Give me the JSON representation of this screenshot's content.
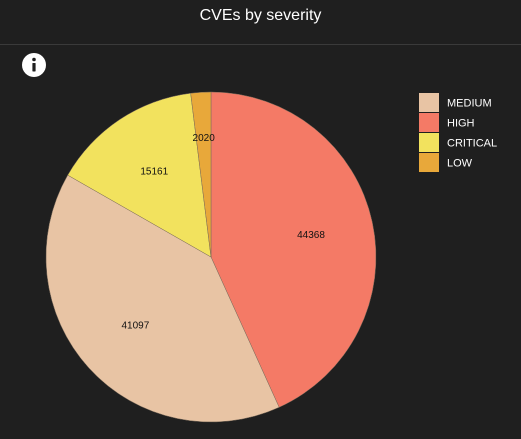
{
  "header": {
    "title": "CVEs by severity"
  },
  "chart_data": {
    "type": "pie",
    "title": "CVEs by severity",
    "categories": [
      "MEDIUM",
      "HIGH",
      "CRITICAL",
      "LOW"
    ],
    "values": [
      41097,
      44368,
      15161,
      2020
    ],
    "colors": {
      "MEDIUM": "#e8c4a4",
      "HIGH": "#f47a66",
      "CRITICAL": "#f2e25e",
      "LOW": "#e8a83a"
    },
    "legend_position": "top-right",
    "slice_order_clockwise_from_top": [
      "HIGH",
      "MEDIUM",
      "CRITICAL",
      "LOW"
    ]
  }
}
